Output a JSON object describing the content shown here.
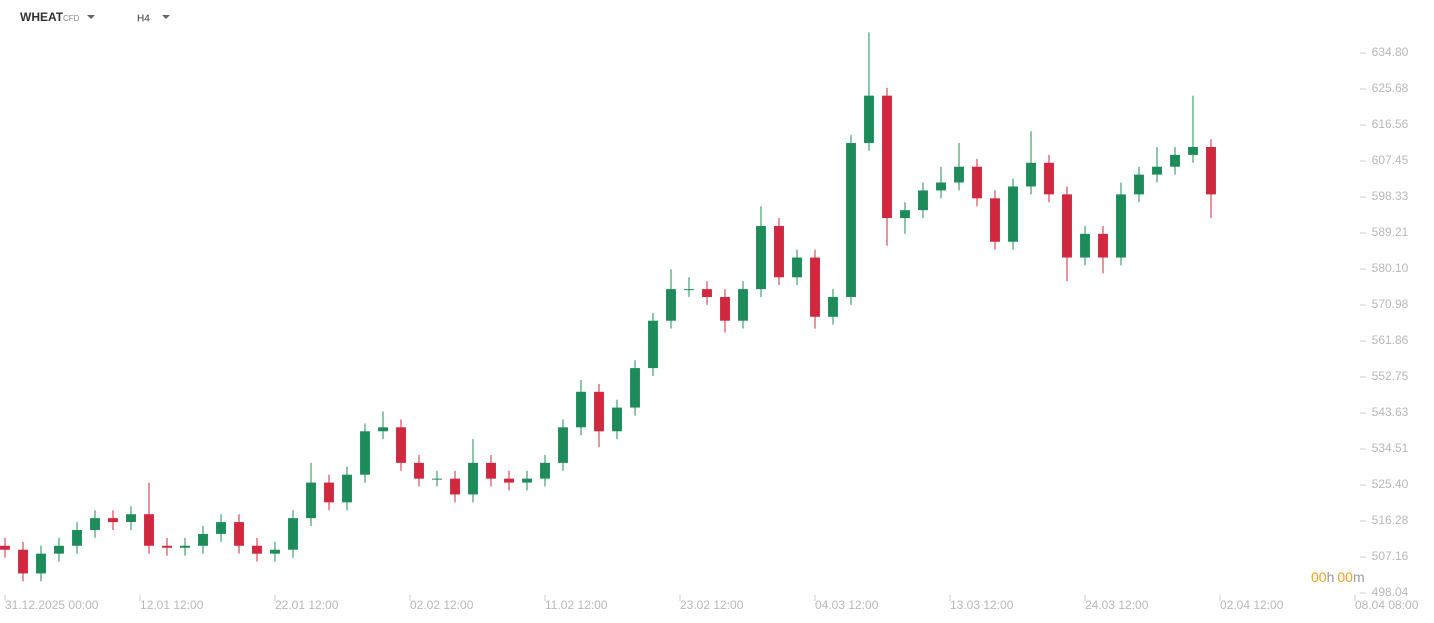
{
  "chart_data": {
    "type": "candlestick",
    "symbol": "WHEAT",
    "instrument": "CFD",
    "timeframe": "H4",
    "countdown": [
      "00",
      "h",
      "00",
      "m"
    ],
    "up_color": "#1e8c5a",
    "down_color": "#d0283f",
    "open": [
      510,
      509,
      503,
      508,
      510,
      514,
      517,
      516,
      518,
      510,
      509.5,
      510,
      513,
      516,
      510,
      508,
      509,
      517,
      526,
      521,
      528,
      539,
      540,
      531,
      527,
      527,
      523,
      531,
      527,
      526,
      527,
      531,
      540,
      549,
      539,
      545,
      555,
      567,
      575,
      575,
      573,
      567,
      575,
      591,
      578,
      583,
      568,
      573,
      612,
      624,
      593,
      595,
      600,
      602,
      606,
      598,
      587,
      601,
      607,
      599,
      583,
      589,
      583,
      599,
      604,
      606,
      609,
      611
    ],
    "high": [
      512,
      511,
      510,
      512,
      516,
      519,
      519,
      520,
      526,
      512,
      512,
      515,
      518,
      518,
      512,
      511,
      519,
      531,
      528,
      530,
      541,
      544,
      542,
      533,
      529,
      529,
      537,
      533,
      529,
      529,
      533,
      542,
      552,
      551,
      547,
      557,
      569,
      580,
      578,
      577,
      575,
      577,
      596,
      593,
      585,
      585,
      575,
      614,
      640,
      626,
      597,
      602,
      606,
      612,
      608,
      600,
      603,
      615,
      609,
      601,
      591,
      591,
      602,
      606,
      611,
      611,
      624,
      613
    ],
    "low": [
      507,
      501,
      501,
      506,
      508,
      512,
      514,
      514,
      508,
      507.5,
      507.5,
      508,
      511,
      508,
      506,
      506,
      507,
      515,
      519,
      519,
      526,
      537,
      529,
      525,
      525,
      521,
      521,
      525,
      524,
      524,
      525,
      529,
      538,
      535,
      537,
      543,
      553,
      565,
      573,
      571,
      564,
      565,
      573,
      576,
      576,
      565,
      566,
      571,
      610,
      586,
      589,
      593,
      598,
      600,
      596,
      585,
      585,
      599,
      597,
      577,
      581,
      579,
      581,
      597,
      602,
      604,
      607,
      593
    ],
    "close": [
      509,
      503,
      508,
      510,
      514,
      517,
      516,
      518,
      510,
      509.5,
      510,
      513,
      516,
      510,
      508,
      509,
      517,
      526,
      521,
      528,
      539,
      540,
      531,
      527,
      527,
      523,
      531,
      527,
      526,
      527,
      531,
      540,
      549,
      539,
      545,
      555,
      567,
      575,
      575,
      573,
      567,
      575,
      591,
      578,
      583,
      568,
      573,
      612,
      624,
      593,
      595,
      600,
      602,
      606,
      598,
      587,
      601,
      607,
      599,
      583,
      589,
      583,
      599,
      604,
      606,
      609,
      611,
      599
    ],
    "xlim": [
      0,
      75
    ],
    "xticks": [
      {
        "value": 0,
        "label": "31.12.2025 00:00"
      },
      {
        "value": 7.5,
        "label": "12.01 12:00"
      },
      {
        "value": 15,
        "label": "22.01 12:00"
      },
      {
        "value": 22.5,
        "label": "02.02 12:00"
      },
      {
        "value": 30,
        "label": "11.02 12:00"
      },
      {
        "value": 37.5,
        "label": "23.02 12:00"
      },
      {
        "value": 45,
        "label": "04.03 12:00"
      },
      {
        "value": 52.5,
        "label": "13.03 12:00"
      },
      {
        "value": 60,
        "label": "24.03 12:00"
      },
      {
        "value": 67.5,
        "label": "02.04 12:00"
      },
      {
        "value": 75,
        "label": "08.04 08:00"
      }
    ],
    "ylim": [
      498.04,
      643.16
    ],
    "yticks": [
      {
        "value": 634.8,
        "label": "634.80"
      },
      625.68,
      616.56,
      607.45,
      598.33,
      589.21,
      {
        "value": 580.1,
        "label": "580.10"
      },
      570.98,
      561.86,
      552.75,
      543.63,
      534.51,
      {
        "value": 525.4,
        "label": "525.40"
      },
      516.28,
      507.16,
      498.04
    ]
  }
}
